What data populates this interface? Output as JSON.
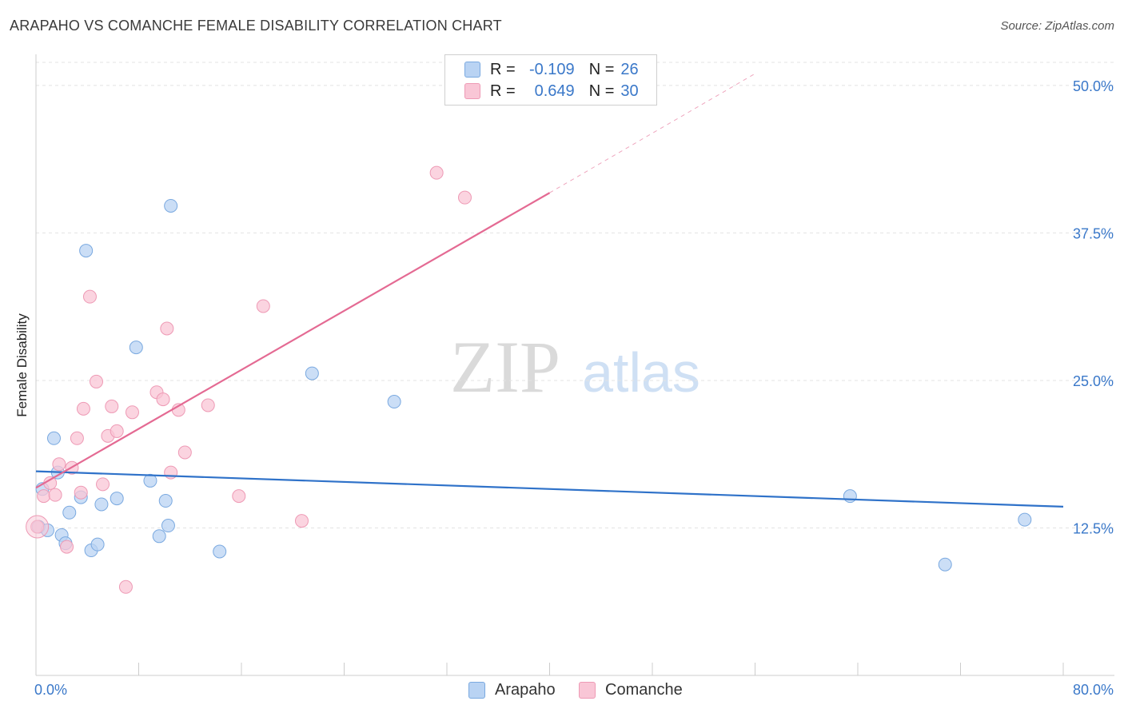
{
  "title": "ARAPAHO VS COMANCHE FEMALE DISABILITY CORRELATION CHART",
  "source": "Source: ZipAtlas.com",
  "watermark": {
    "zip": "ZIP",
    "atlas": "atlas"
  },
  "colors": {
    "arapaho_fill": "#b9d3f3",
    "arapaho_stroke": "#7aa9e0",
    "arapaho_line": "#2f72c9",
    "comanche_fill": "#f9c6d6",
    "comanche_stroke": "#ee9ab5",
    "comanche_line": "#e46a93",
    "axis_label": "#3a78c9",
    "grid": "#e3e3e3"
  },
  "legend": {
    "rows": [
      {
        "r_label": "R =",
        "r_value": "-0.109",
        "n_label": "N =",
        "n_value": "26"
      },
      {
        "r_label": "R =",
        "r_value": "0.649",
        "n_label": "N =",
        "n_value": "30"
      }
    ]
  },
  "bottom_legend": [
    "Arapaho",
    "Comanche"
  ],
  "chart_data": {
    "type": "scatter",
    "title": "ARAPAHO VS COMANCHE FEMALE DISABILITY CORRELATION CHART",
    "xlabel": "",
    "ylabel": "Female Disability",
    "xlim": [
      0,
      80
    ],
    "ylim": [
      0,
      52.5
    ],
    "x_tick_labels": [
      "0.0%",
      "80.0%"
    ],
    "y_ticks": [
      12.5,
      25.0,
      37.5,
      50.0
    ],
    "y_tick_labels": [
      "12.5%",
      "25.0%",
      "37.5%",
      "50.0%"
    ],
    "grid": true,
    "legend_position": "top-center",
    "series": [
      {
        "name": "Arapaho",
        "r": -0.109,
        "n": 26,
        "points": [
          [
            0.2,
            12.6
          ],
          [
            0.5,
            15.8
          ],
          [
            0.9,
            12.3
          ],
          [
            1.4,
            20.1
          ],
          [
            1.7,
            17.2
          ],
          [
            2.0,
            11.9
          ],
          [
            2.3,
            11.2
          ],
          [
            2.6,
            13.8
          ],
          [
            3.5,
            15.1
          ],
          [
            3.9,
            36.0
          ],
          [
            4.3,
            10.6
          ],
          [
            4.8,
            11.1
          ],
          [
            5.1,
            14.5
          ],
          [
            6.3,
            15.0
          ],
          [
            7.8,
            27.8
          ],
          [
            8.9,
            16.5
          ],
          [
            9.6,
            11.8
          ],
          [
            10.1,
            14.8
          ],
          [
            10.3,
            12.7
          ],
          [
            10.5,
            39.8
          ],
          [
            14.3,
            10.5
          ],
          [
            21.5,
            25.6
          ],
          [
            27.9,
            23.2
          ],
          [
            63.4,
            15.2
          ],
          [
            70.8,
            9.4
          ],
          [
            77.0,
            13.2
          ]
        ],
        "trend": {
          "x": [
            0.0,
            80.0
          ],
          "y": [
            17.3,
            14.3
          ]
        }
      },
      {
        "name": "Comanche",
        "r": 0.649,
        "n": 30,
        "points": [
          [
            0.1,
            12.6
          ],
          [
            0.6,
            15.2
          ],
          [
            1.1,
            16.3
          ],
          [
            1.5,
            15.3
          ],
          [
            1.8,
            17.9
          ],
          [
            2.4,
            10.9
          ],
          [
            2.8,
            17.6
          ],
          [
            3.2,
            20.1
          ],
          [
            3.5,
            15.5
          ],
          [
            3.7,
            22.6
          ],
          [
            4.2,
            32.1
          ],
          [
            4.7,
            24.9
          ],
          [
            5.2,
            16.2
          ],
          [
            5.6,
            20.3
          ],
          [
            5.9,
            22.8
          ],
          [
            6.3,
            20.7
          ],
          [
            7.0,
            7.5
          ],
          [
            7.5,
            22.3
          ],
          [
            9.4,
            24.0
          ],
          [
            9.9,
            23.4
          ],
          [
            10.2,
            29.4
          ],
          [
            10.5,
            17.2
          ],
          [
            11.1,
            22.5
          ],
          [
            11.6,
            18.9
          ],
          [
            13.4,
            22.9
          ],
          [
            15.8,
            15.2
          ],
          [
            17.7,
            31.3
          ],
          [
            20.7,
            13.1
          ],
          [
            31.2,
            42.6
          ],
          [
            33.4,
            40.5
          ]
        ],
        "trend": {
          "x": [
            0.0,
            40.0
          ],
          "y": [
            15.9,
            40.9
          ]
        },
        "trend_extension": {
          "x": [
            40.0,
            56.0
          ],
          "y": [
            40.9,
            51.0
          ]
        }
      }
    ]
  }
}
